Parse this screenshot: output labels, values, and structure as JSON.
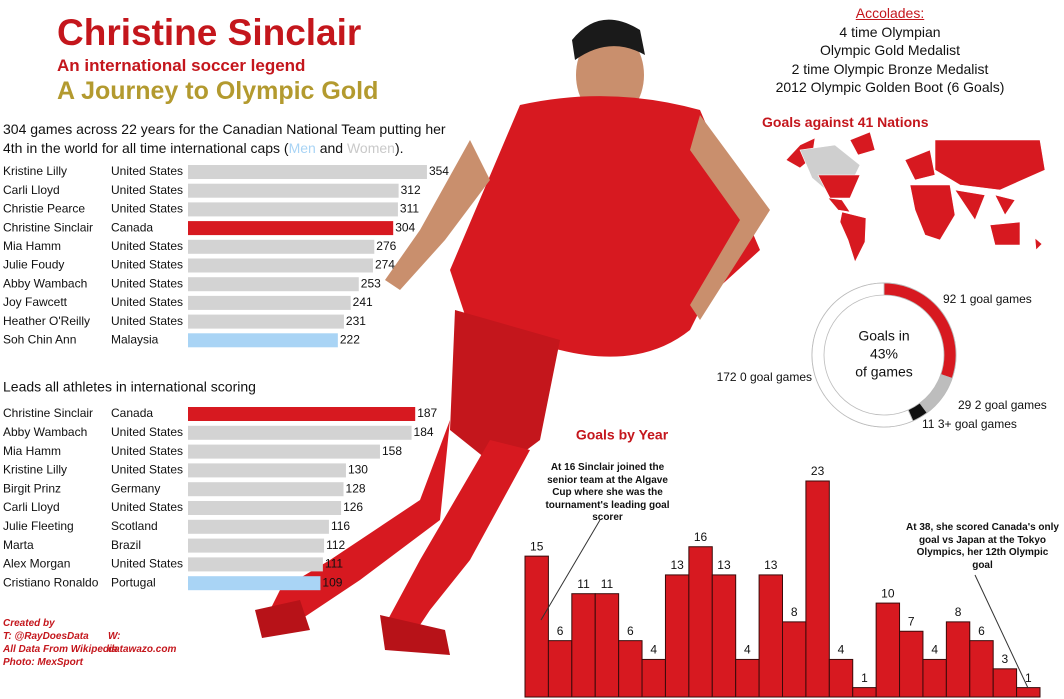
{
  "header": {
    "title": "Christine Sinclair",
    "subtitle": "An international soccer legend",
    "tagline": "A Journey to Olympic Gold"
  },
  "accolades": {
    "heading": "Accolades:",
    "items": [
      "4 time Olympian",
      "Olympic Gold Medalist",
      "2 time Olympic Bronze Medalist",
      "2012 Olympic Golden Boot (6 Goals)"
    ]
  },
  "map": {
    "title": "Goals against 41 Nations"
  },
  "credits": [
    "Created by",
    "T: @RayDoesData",
    "W: datawazo.com",
    "All Data From Wikipedia",
    "Photo: MexSport"
  ],
  "chart_data": [
    {
      "type": "hbar",
      "title_parts": [
        "304 games across 22 years for the Canadian National Team putting her 4th in the world for all time international caps (",
        "Men",
        "and",
        "Women",
        ")."
      ],
      "categories": [
        "Kristine Lilly",
        "Carli Lloyd",
        "Christie Pearce",
        "Christine Sinclair",
        "Mia Hamm",
        "Julie Foudy",
        "Abby Wambach",
        "Joy Fawcett",
        "Heather O'Reilly",
        "Soh Chin Ann"
      ],
      "countries": [
        "United States",
        "United States",
        "United States",
        "Canada",
        "United States",
        "United States",
        "United States",
        "United States",
        "United States",
        "Malaysia"
      ],
      "values": [
        354,
        312,
        311,
        304,
        276,
        274,
        253,
        241,
        231,
        222
      ],
      "colors": [
        "#d3d3d3",
        "#d3d3d3",
        "#d3d3d3",
        "#d71920",
        "#d3d3d3",
        "#d3d3d3",
        "#d3d3d3",
        "#d3d3d3",
        "#d3d3d3",
        "#a9d4f5"
      ],
      "xlim": [
        0,
        360
      ]
    },
    {
      "type": "hbar",
      "title": "Leads all athletes in international scoring",
      "categories": [
        "Christine Sinclair",
        "Abby Wambach",
        "Mia Hamm",
        "Kristine Lilly",
        "Birgit Prinz",
        "Carli Lloyd",
        "Julie Fleeting",
        "Marta",
        "Alex Morgan",
        "Cristiano Ronaldo"
      ],
      "countries": [
        "Canada",
        "United States",
        "United States",
        "United States",
        "Germany",
        "United States",
        "Scotland",
        "Brazil",
        "United States",
        "Portugal"
      ],
      "values": [
        187,
        184,
        158,
        130,
        128,
        126,
        116,
        112,
        111,
        109
      ],
      "colors": [
        "#d71920",
        "#d3d3d3",
        "#d3d3d3",
        "#d3d3d3",
        "#d3d3d3",
        "#d3d3d3",
        "#d3d3d3",
        "#d3d3d3",
        "#d3d3d3",
        "#a9d4f5"
      ],
      "xlim": [
        0,
        200
      ]
    },
    {
      "type": "donut",
      "categories": [
        "1 goal games",
        "2 goal games",
        "3+ goal games",
        "0 goal games"
      ],
      "values": [
        92,
        29,
        11,
        172
      ],
      "colors": [
        "#d71920",
        "#bdbdbd",
        "#111111",
        "#ffffff"
      ],
      "center_text": [
        "Goals in",
        "43%",
        "of games"
      ]
    },
    {
      "type": "bar",
      "title": "Goals by Year",
      "categories": [
        null,
        null,
        null,
        null,
        null,
        null,
        null,
        null,
        null,
        null,
        null,
        null,
        null,
        null,
        null,
        null,
        null,
        null,
        null,
        null,
        null,
        null
      ],
      "values": [
        15,
        6,
        11,
        11,
        6,
        4,
        13,
        16,
        13,
        4,
        13,
        8,
        23,
        4,
        1,
        10,
        7,
        4,
        8,
        6,
        3,
        1
      ],
      "color": "#d71920",
      "ylim": [
        0,
        23
      ],
      "annotations": [
        "At 16 Sinclair joined the senior team at the Algave Cup where she was the tournament's leading goal scorer",
        "At 38, she scored Canada's only goal vs Japan at the Tokyo Olympics, her 12th Olympic goal"
      ]
    }
  ]
}
